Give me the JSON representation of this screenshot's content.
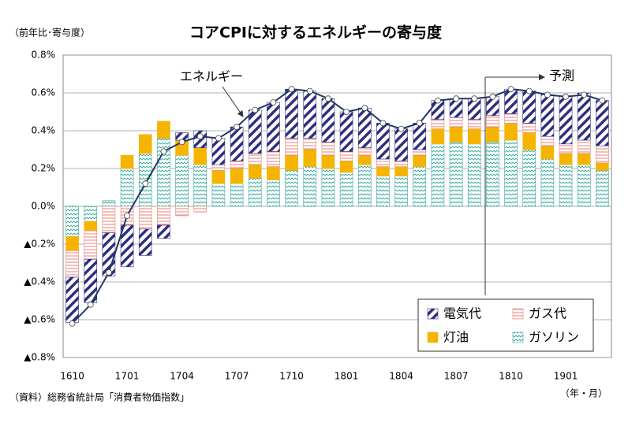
{
  "chart_data": {
    "type": "bar",
    "title": "コアCPIに対するエネルギーの寄与度",
    "y_label": "（前年比･寄与度）",
    "x_label": "（年・月）",
    "source": "（資料）総務省統計局「消費者物価指数」",
    "categories": [
      "1610",
      null,
      null,
      "1701",
      null,
      null,
      "1704",
      null,
      null,
      "1707",
      null,
      null,
      "1710",
      null,
      null,
      "1801",
      null,
      null,
      "1804",
      null,
      null,
      "1807",
      null,
      null,
      "1810",
      null,
      null,
      "1901",
      null,
      null
    ],
    "stacked": true,
    "series": [
      {
        "name": "ガソリン",
        "color": "#3aa8a0",
        "hatch": "dots",
        "values": [
          -0.16,
          -0.08,
          0.03,
          0.2,
          0.28,
          0.36,
          0.27,
          0.22,
          0.12,
          0.12,
          0.15,
          0.14,
          0.19,
          0.21,
          0.2,
          0.18,
          0.22,
          0.16,
          0.16,
          0.21,
          0.33,
          0.34,
          0.33,
          0.34,
          0.35,
          0.3,
          0.25,
          0.22,
          0.22,
          0.19
        ]
      },
      {
        "name": "灯油",
        "color": "#f5b400",
        "hatch": "solid",
        "values": [
          -0.075,
          -0.05,
          0,
          0.07,
          0.1,
          0.09,
          0.08,
          0.09,
          0.07,
          0.08,
          0.07,
          0.07,
          0.08,
          0.09,
          0.07,
          0.06,
          0.05,
          0.05,
          0.05,
          0.06,
          0.08,
          0.08,
          0.08,
          0.08,
          0.09,
          0.09,
          0.07,
          0.06,
          0.06,
          0.04
        ]
      },
      {
        "name": "ガス代",
        "color": "#e8807a",
        "hatch": "horizontal",
        "values": [
          -0.14,
          -0.15,
          -0.14,
          -0.1,
          -0.12,
          -0.1,
          -0.05,
          -0.03,
          0.03,
          0.04,
          0.06,
          0.08,
          0.09,
          0.06,
          0.07,
          0.05,
          0.04,
          0.04,
          0.03,
          0.03,
          0.05,
          0.05,
          0.05,
          0.06,
          0.05,
          0.05,
          0.05,
          0.05,
          0.07,
          0.09
        ]
      },
      {
        "name": "電気代",
        "color": "#2e2e80",
        "hatch": "diagonal",
        "values": [
          -0.24,
          -0.23,
          -0.23,
          -0.22,
          -0.14,
          -0.07,
          0.04,
          0.09,
          0.14,
          0.18,
          0.23,
          0.26,
          0.26,
          0.25,
          0.23,
          0.21,
          0.21,
          0.19,
          0.17,
          0.14,
          0.1,
          0.1,
          0.11,
          0.1,
          0.13,
          0.17,
          0.22,
          0.25,
          0.25,
          0.24
        ]
      }
    ],
    "line": {
      "name": "エネルギー",
      "color": "#1f3864",
      "values": [
        -0.62,
        -0.52,
        -0.35,
        -0.05,
        0.12,
        0.29,
        0.34,
        0.37,
        0.36,
        0.42,
        0.51,
        0.55,
        0.62,
        0.61,
        0.57,
        0.5,
        0.52,
        0.44,
        0.41,
        0.44,
        0.56,
        0.57,
        0.57,
        0.58,
        0.62,
        0.61,
        0.59,
        0.58,
        0.59,
        0.56
      ]
    },
    "annotation": "予測",
    "ylim": [
      -0.8,
      0.8
    ],
    "yticks": [
      {
        "value": -0.8,
        "label": "▲0.8%"
      },
      {
        "value": -0.6,
        "label": "▲0.6%"
      },
      {
        "value": -0.4,
        "label": "▲0.4%"
      },
      {
        "value": -0.2,
        "label": "▲0.2%"
      },
      {
        "value": 0,
        "label": "0.0%"
      },
      {
        "value": 0.2,
        "label": "0.2%"
      },
      {
        "value": 0.4,
        "label": "0.4%"
      },
      {
        "value": 0.6,
        "label": "0.6%"
      },
      {
        "value": 0.8,
        "label": "0.8%"
      }
    ],
    "grid": true,
    "legend": "lower right"
  }
}
